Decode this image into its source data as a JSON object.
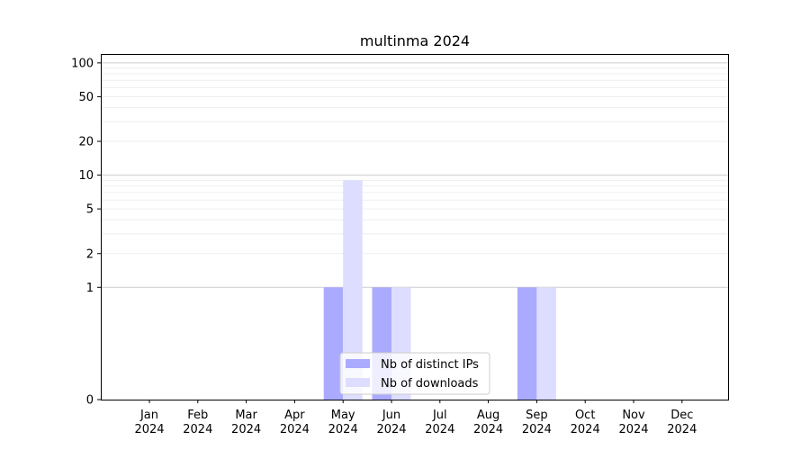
{
  "chart_data": {
    "type": "bar",
    "title": "multinma 2024",
    "xlabel": "",
    "ylabel": "",
    "y_scale": "symlog",
    "ylim": [
      0,
      120
    ],
    "y_ticks": [
      0,
      1,
      2,
      5,
      10,
      20,
      50,
      100
    ],
    "grid": "horizontal, major and minor",
    "categories": [
      "Jan\n2024",
      "Feb\n2024",
      "Mar\n2024",
      "Apr\n2024",
      "May\n2024",
      "Jun\n2024",
      "Jul\n2024",
      "Aug\n2024",
      "Sep\n2024",
      "Oct\n2024",
      "Nov\n2024",
      "Dec\n2024"
    ],
    "category_lines": [
      [
        "Jan",
        "2024"
      ],
      [
        "Feb",
        "2024"
      ],
      [
        "Mar",
        "2024"
      ],
      [
        "Apr",
        "2024"
      ],
      [
        "May",
        "2024"
      ],
      [
        "Jun",
        "2024"
      ],
      [
        "Jul",
        "2024"
      ],
      [
        "Aug",
        "2024"
      ],
      [
        "Sep",
        "2024"
      ],
      [
        "Oct",
        "2024"
      ],
      [
        "Nov",
        "2024"
      ],
      [
        "Dec",
        "2024"
      ]
    ],
    "series": [
      {
        "name": "Nb of distinct IPs",
        "color": "#aaaaff",
        "values": [
          0,
          0,
          0,
          0,
          1,
          1,
          0,
          0,
          1,
          0,
          0,
          0
        ]
      },
      {
        "name": "Nb of downloads",
        "color": "#ddddff",
        "values": [
          0,
          0,
          0,
          0,
          9,
          1,
          0,
          0,
          1,
          0,
          0,
          0
        ]
      }
    ],
    "legend_position": "lower center"
  }
}
